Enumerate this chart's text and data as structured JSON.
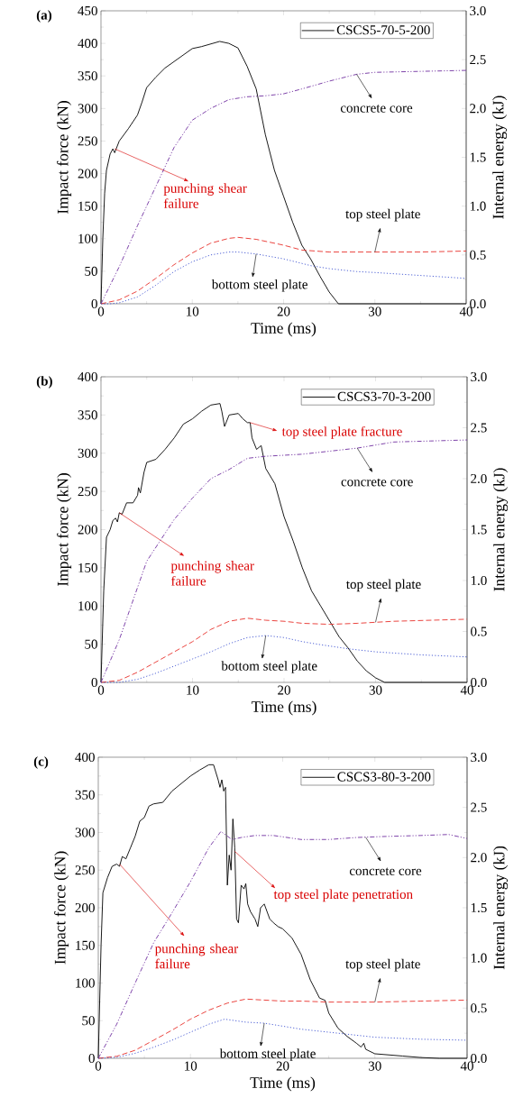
{
  "chart_data": [
    {
      "type": "line",
      "title": "(a)",
      "xlabel": "Time (ms)",
      "ylabel": "Impact force (kN)",
      "y2label": "Internal energy (kJ)",
      "xlim": [
        0,
        40
      ],
      "xticks": [
        0,
        10,
        20,
        30,
        40
      ],
      "ylim": [
        0,
        450
      ],
      "yticks": [
        0,
        50,
        100,
        150,
        200,
        250,
        300,
        350,
        400,
        450
      ],
      "y2lim": [
        0,
        3
      ],
      "y2ticks": [
        {
          "value": 0,
          "label": "0.0"
        },
        {
          "value": 0.5,
          "label": "0.5"
        },
        {
          "value": 1,
          "label": "1.0"
        },
        {
          "value": 1.5,
          "label": "1.5"
        },
        {
          "value": 2,
          "label": "2.0"
        },
        {
          "value": 2.5,
          "label": "2.5"
        },
        {
          "value": 3,
          "label": "3.0"
        }
      ],
      "legend": "top right",
      "series": [
        {
          "name": "CSCS5-70-5-200",
          "color": "#000000",
          "line_style": "solid",
          "x": [
            0,
            0.2,
            0.4,
            0.6,
            1,
            1.3,
            1.5,
            2,
            3,
            4,
            4.5,
            5,
            6,
            7,
            8,
            9,
            10,
            11,
            12,
            13,
            14,
            15,
            16,
            17,
            18,
            19,
            20,
            21,
            22,
            23,
            24,
            25,
            26,
            40
          ],
          "values": [
            0,
            100,
            170,
            205,
            230,
            238,
            232,
            250,
            269,
            290,
            310,
            332,
            348,
            362,
            372,
            382,
            392,
            395,
            399,
            403,
            400,
            393,
            365,
            330,
            260,
            205,
            165,
            125,
            90,
            68,
            42,
            18,
            0,
            0
          ]
        },
        {
          "axis": "y2",
          "color": "#7030a0",
          "line_style": "dashdotdotted",
          "x": [
            0,
            2,
            4,
            6,
            8,
            10,
            12,
            14,
            16,
            18,
            20,
            22,
            25,
            28,
            30,
            35,
            40
          ],
          "values": [
            0,
            0.38,
            0.8,
            1.2,
            1.6,
            1.88,
            2.0,
            2.09,
            2.12,
            2.13,
            2.15,
            2.2,
            2.28,
            2.35,
            2.37,
            2.38,
            2.39
          ]
        },
        {
          "axis": "y2",
          "color": "#e8302a",
          "line_style": "dashed",
          "x": [
            0,
            2,
            4,
            6,
            8,
            10,
            12,
            14,
            15,
            17,
            20,
            22,
            25,
            30,
            35,
            40
          ],
          "values": [
            0,
            0.04,
            0.13,
            0.26,
            0.4,
            0.52,
            0.62,
            0.67,
            0.68,
            0.66,
            0.6,
            0.55,
            0.53,
            0.53,
            0.53,
            0.54
          ]
        },
        {
          "axis": "y2",
          "color": "#3a4fd0",
          "line_style": "dotted",
          "x": [
            0,
            1,
            2,
            4,
            6,
            8,
            10,
            12,
            14,
            15,
            17,
            20,
            23,
            25,
            28,
            30,
            35,
            40
          ],
          "values": [
            0,
            0,
            0.01,
            0.07,
            0.19,
            0.33,
            0.43,
            0.5,
            0.53,
            0.53,
            0.51,
            0.46,
            0.39,
            0.36,
            0.33,
            0.32,
            0.29,
            0.26
          ]
        }
      ],
      "annotations": [
        {
          "text": "punching shear failure",
          "x": 1.5,
          "y": 238
        },
        "concrete core",
        "top steel plate",
        "bottom steel plate"
      ]
    },
    {
      "type": "line",
      "title": "(b)",
      "xlabel": "Time (ms)",
      "ylabel": "Impact force (kN)",
      "y2label": "Internal energy (kJ)",
      "xlim": [
        0,
        40
      ],
      "xticks": [
        0,
        10,
        20,
        30,
        40
      ],
      "ylim": [
        0,
        400
      ],
      "yticks": [
        0,
        50,
        100,
        150,
        200,
        250,
        300,
        350,
        400
      ],
      "y2lim": [
        0,
        3
      ],
      "y2ticks": [
        {
          "value": 0,
          "label": "0.0"
        },
        {
          "value": 0.5,
          "label": "0.5"
        },
        {
          "value": 1,
          "label": "1.0"
        },
        {
          "value": 1.5,
          "label": "1.5"
        },
        {
          "value": 2,
          "label": "2.0"
        },
        {
          "value": 2.5,
          "label": "2.5"
        },
        {
          "value": 3,
          "label": "3.0"
        }
      ],
      "legend": "top right",
      "series": [
        {
          "name": "CSCS3-70-3-200",
          "color": "#000000",
          "line_style": "solid",
          "x": [
            0,
            0.3,
            0.6,
            1,
            1.3,
            1.6,
            1.8,
            2,
            2.3,
            2.8,
            3.5,
            4,
            4.1,
            4.3,
            4.7,
            5,
            6,
            7,
            8,
            9,
            10,
            11,
            12,
            13,
            13.2,
            13.5,
            14,
            15,
            15.5,
            16,
            16.3,
            16.5,
            17,
            17.5,
            18,
            19,
            20,
            21,
            22,
            23,
            24,
            25,
            26,
            27,
            28,
            29,
            30,
            31,
            40
          ],
          "values": [
            0,
            120,
            190,
            200,
            212,
            215,
            210,
            222,
            220,
            235,
            235,
            245,
            255,
            248,
            275,
            288,
            292,
            305,
            320,
            338,
            345,
            355,
            363,
            365,
            355,
            335,
            350,
            352,
            345,
            340,
            340,
            320,
            305,
            310,
            280,
            260,
            217,
            185,
            150,
            120,
            100,
            80,
            60,
            45,
            28,
            15,
            6,
            0,
            0
          ]
        },
        {
          "axis": "y2",
          "color": "#7030a0",
          "line_style": "dashdotdotted",
          "x": [
            0,
            2,
            5,
            8,
            10,
            12,
            14,
            16,
            18,
            20,
            22,
            25,
            28,
            32,
            36,
            40
          ],
          "values": [
            0,
            0.42,
            1.19,
            1.6,
            1.81,
            2.0,
            2.09,
            2.2,
            2.22,
            2.23,
            2.24,
            2.27,
            2.3,
            2.36,
            2.37,
            2.38
          ]
        },
        {
          "axis": "y2",
          "color": "#e8302a",
          "line_style": "dashed",
          "x": [
            0,
            2,
            4,
            6,
            8,
            10,
            12,
            14,
            16,
            18,
            20,
            22,
            25,
            28,
            32,
            36,
            40
          ],
          "values": [
            0,
            0.02,
            0.1,
            0.2,
            0.3,
            0.4,
            0.52,
            0.6,
            0.63,
            0.61,
            0.6,
            0.58,
            0.57,
            0.58,
            0.6,
            0.61,
            0.62
          ]
        },
        {
          "axis": "y2",
          "color": "#3a4fd0",
          "line_style": "dotted",
          "x": [
            0,
            2,
            4,
            6,
            8,
            10,
            12,
            14,
            16,
            18,
            20,
            22,
            24,
            27,
            30,
            35,
            40
          ],
          "values": [
            0,
            0,
            0.03,
            0.09,
            0.16,
            0.23,
            0.3,
            0.38,
            0.44,
            0.46,
            0.44,
            0.4,
            0.37,
            0.33,
            0.3,
            0.27,
            0.25
          ]
        }
      ],
      "annotations": [
        {
          "text": "punching shear failure",
          "x": 2,
          "y": 222
        },
        {
          "text": "top steel plate fracture",
          "x": 16.3,
          "y": 340
        },
        "concrete core",
        "top steel plate",
        "bottom steel plate"
      ]
    },
    {
      "type": "line",
      "title": "(c)",
      "xlabel": "Time (ms)",
      "ylabel": "Impact force (kN)",
      "y2label": "Internal energy (kJ)",
      "xlim": [
        0,
        40
      ],
      "xticks": [
        0,
        10,
        20,
        30,
        40
      ],
      "ylim": [
        0,
        400
      ],
      "yticks": [
        0,
        50,
        100,
        150,
        200,
        250,
        300,
        350,
        400
      ],
      "y2lim": [
        0,
        3
      ],
      "y2ticks": [
        {
          "value": 0,
          "label": "0.0"
        },
        {
          "value": 0.5,
          "label": "0.5"
        },
        {
          "value": 1,
          "label": "1.0"
        },
        {
          "value": 1.5,
          "label": "1.5"
        },
        {
          "value": 2,
          "label": "2.0"
        },
        {
          "value": 2.5,
          "label": "2.5"
        },
        {
          "value": 3,
          "label": "3.0"
        }
      ],
      "legend": "top right",
      "series": [
        {
          "name": "CSCS3-80-3-200",
          "color": "#000000",
          "line_style": "solid",
          "x": [
            0,
            0.3,
            0.5,
            1,
            1.5,
            2,
            2.3,
            2.6,
            3,
            3.5,
            4,
            4.5,
            5,
            5.5,
            6,
            7,
            8,
            9,
            10,
            11,
            12,
            12.5,
            13,
            13.2,
            13.4,
            13.6,
            13.8,
            14,
            14.2,
            14.4,
            14.6,
            14.8,
            15,
            15.2,
            15.5,
            15.8,
            16,
            16.2,
            16.5,
            17,
            17.3,
            17.6,
            18,
            18.3,
            18.6,
            19,
            19.5,
            20,
            21,
            22,
            23,
            24,
            24.6,
            25,
            26,
            27,
            28,
            28.5,
            28.8,
            29,
            30,
            31,
            33,
            35,
            37,
            40
          ],
          "values": [
            0,
            150,
            220,
            240,
            255,
            258,
            255,
            268,
            265,
            280,
            295,
            315,
            320,
            335,
            338,
            340,
            355,
            365,
            375,
            383,
            390,
            390,
            370,
            360,
            370,
            355,
            360,
            230,
            270,
            250,
            318,
            280,
            185,
            180,
            230,
            225,
            232,
            205,
            195,
            185,
            175,
            200,
            205,
            195,
            185,
            180,
            175,
            172,
            160,
            138,
            104,
            80,
            77,
            60,
            40,
            29,
            20,
            15,
            20,
            12,
            6,
            5,
            3,
            1,
            0,
            0
          ]
        },
        {
          "axis": "y2",
          "color": "#7030a0",
          "line_style": "dashdotdotted",
          "x": [
            0,
            2,
            4,
            6,
            8,
            10,
            12,
            13.3,
            14.5,
            15.5,
            17,
            19,
            22,
            25,
            28,
            31,
            35,
            38,
            40
          ],
          "values": [
            0,
            0.34,
            0.75,
            1.15,
            1.45,
            1.76,
            2.1,
            2.26,
            2.18,
            2.2,
            2.22,
            2.22,
            2.18,
            2.18,
            2.2,
            2.21,
            2.22,
            2.23,
            2.19
          ]
        },
        {
          "axis": "y2",
          "color": "#e8302a",
          "line_style": "dashed",
          "x": [
            0,
            2,
            4,
            6,
            8,
            10,
            12,
            14,
            16,
            18,
            20,
            22,
            25,
            30,
            35,
            40
          ],
          "values": [
            0,
            0.02,
            0.08,
            0.18,
            0.28,
            0.39,
            0.48,
            0.55,
            0.59,
            0.58,
            0.57,
            0.57,
            0.56,
            0.56,
            0.57,
            0.58
          ]
        },
        {
          "axis": "y2",
          "color": "#3a4fd0",
          "line_style": "dotted",
          "x": [
            0,
            2,
            4,
            6,
            8,
            10,
            12,
            13.7,
            16,
            18,
            20,
            22,
            25,
            28,
            30,
            35,
            40
          ],
          "values": [
            0,
            0.01,
            0.05,
            0.11,
            0.18,
            0.26,
            0.34,
            0.39,
            0.36,
            0.35,
            0.32,
            0.29,
            0.26,
            0.23,
            0.21,
            0.19,
            0.18
          ]
        }
      ],
      "annotations": [
        {
          "text": "punching shear failure",
          "x": 2.3,
          "y": 258
        },
        {
          "text": "top steel plate penetration",
          "x": 14.8,
          "y": 275
        },
        "concrete core",
        "top steel plate",
        "bottom steel plate"
      ]
    }
  ]
}
